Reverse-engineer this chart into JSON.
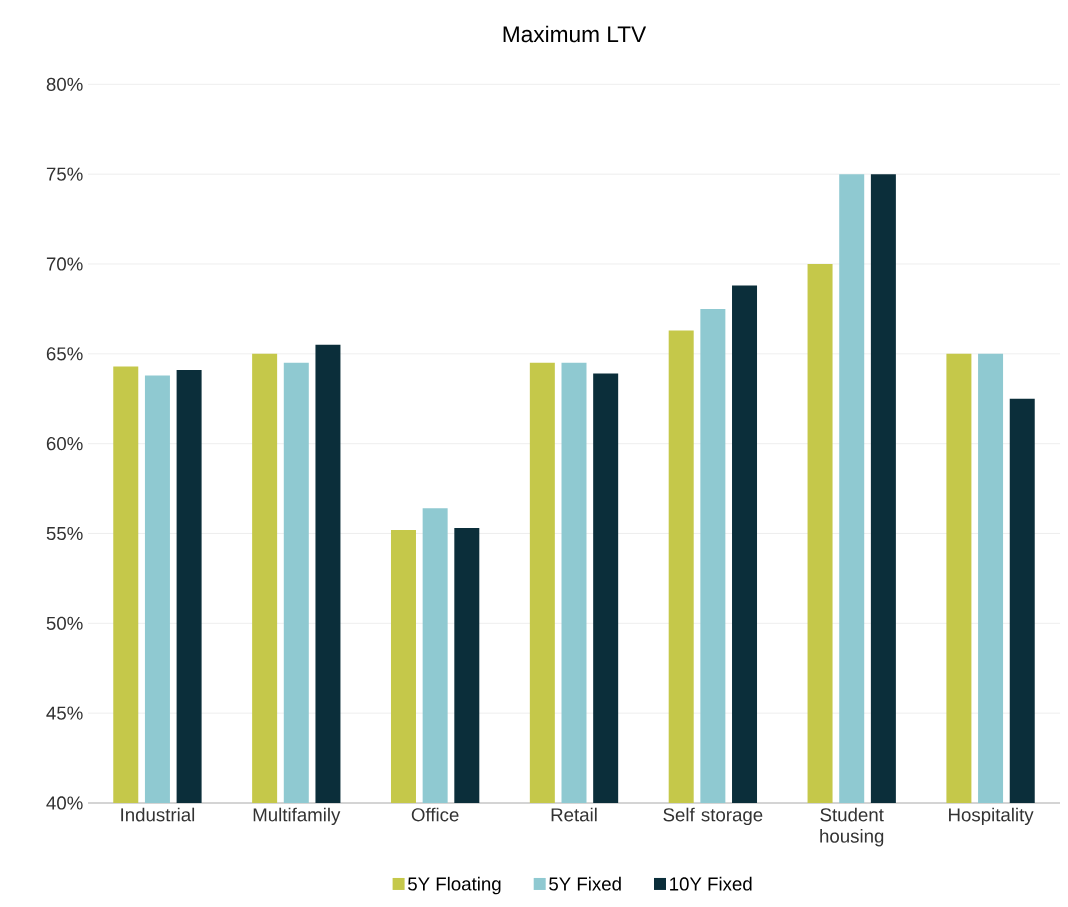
{
  "chart_data": {
    "type": "bar",
    "title": "Maximum LTV",
    "categories": [
      "Industrial",
      "Multifamily",
      "Office",
      "Retail",
      "Self storage",
      "Student housing",
      "Hospitality"
    ],
    "series": [
      {
        "name": "5Y Floating",
        "color": "#c5c84a",
        "values": [
          64.3,
          65.0,
          55.2,
          64.5,
          66.3,
          70.0,
          65.0
        ]
      },
      {
        "name": "5Y Fixed",
        "color": "#8fc9d1",
        "values": [
          63.8,
          64.5,
          56.4,
          64.5,
          67.5,
          75.0,
          65.0
        ]
      },
      {
        "name": "10Y Fixed",
        "color": "#0b2e3a",
        "values": [
          64.1,
          65.5,
          55.3,
          63.9,
          68.8,
          75.0,
          62.5
        ]
      }
    ],
    "ylim": [
      40,
      80
    ],
    "yticks": [
      {
        "value": 40,
        "label": "40%"
      },
      {
        "value": 45,
        "label": "45%"
      },
      {
        "value": 50,
        "label": "50%"
      },
      {
        "value": 55,
        "label": "55%"
      },
      {
        "value": 60,
        "label": "60%"
      },
      {
        "value": 65,
        "label": "65%"
      },
      {
        "value": 70,
        "label": "70%"
      },
      {
        "value": 75,
        "label": "75%"
      },
      {
        "value": 80,
        "label": "80%"
      }
    ],
    "grid": "y",
    "legend": "bottom"
  }
}
